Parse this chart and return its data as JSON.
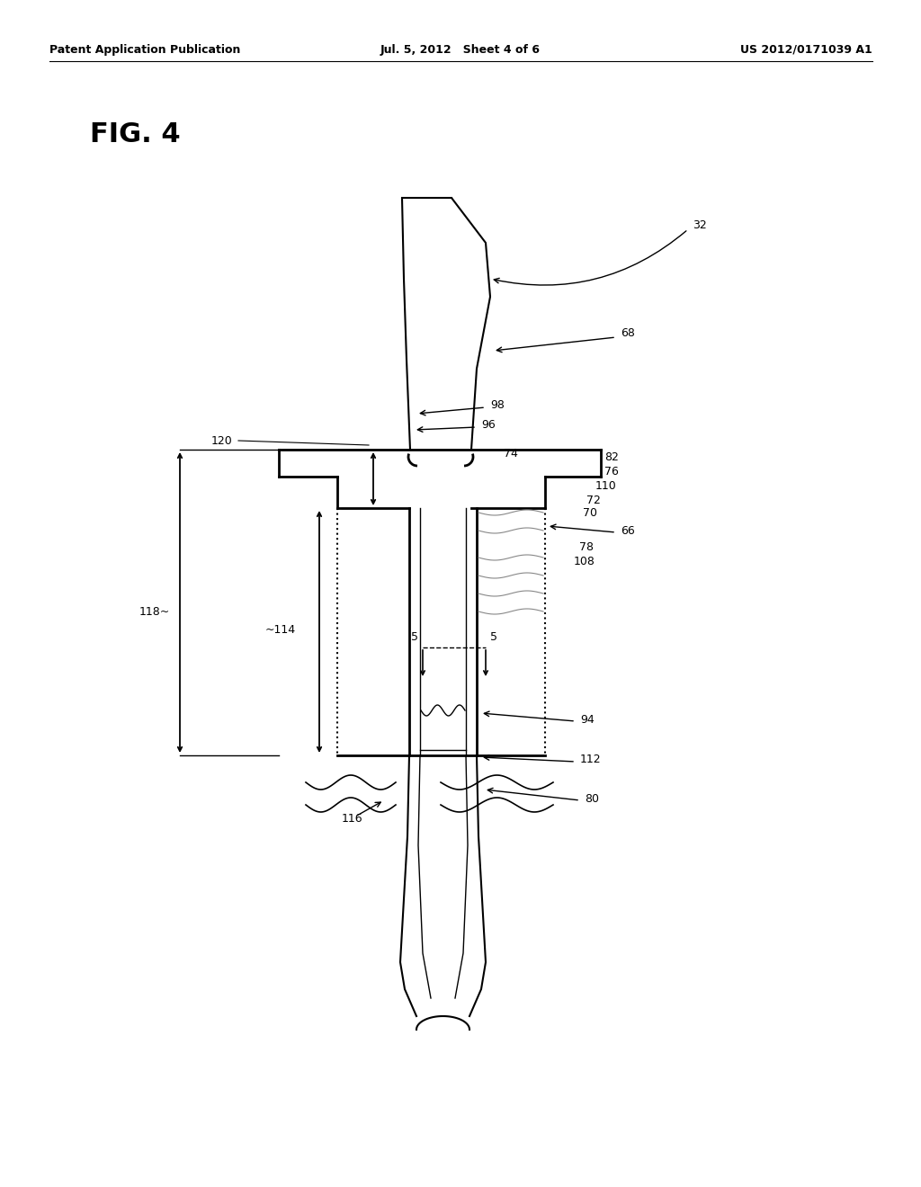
{
  "bg_color": "#ffffff",
  "line_color": "#000000",
  "header_left": "Patent Application Publication",
  "header_mid": "Jul. 5, 2012   Sheet 4 of 6",
  "header_right": "US 2012/0171039 A1",
  "fig_label": "FIG. 4"
}
